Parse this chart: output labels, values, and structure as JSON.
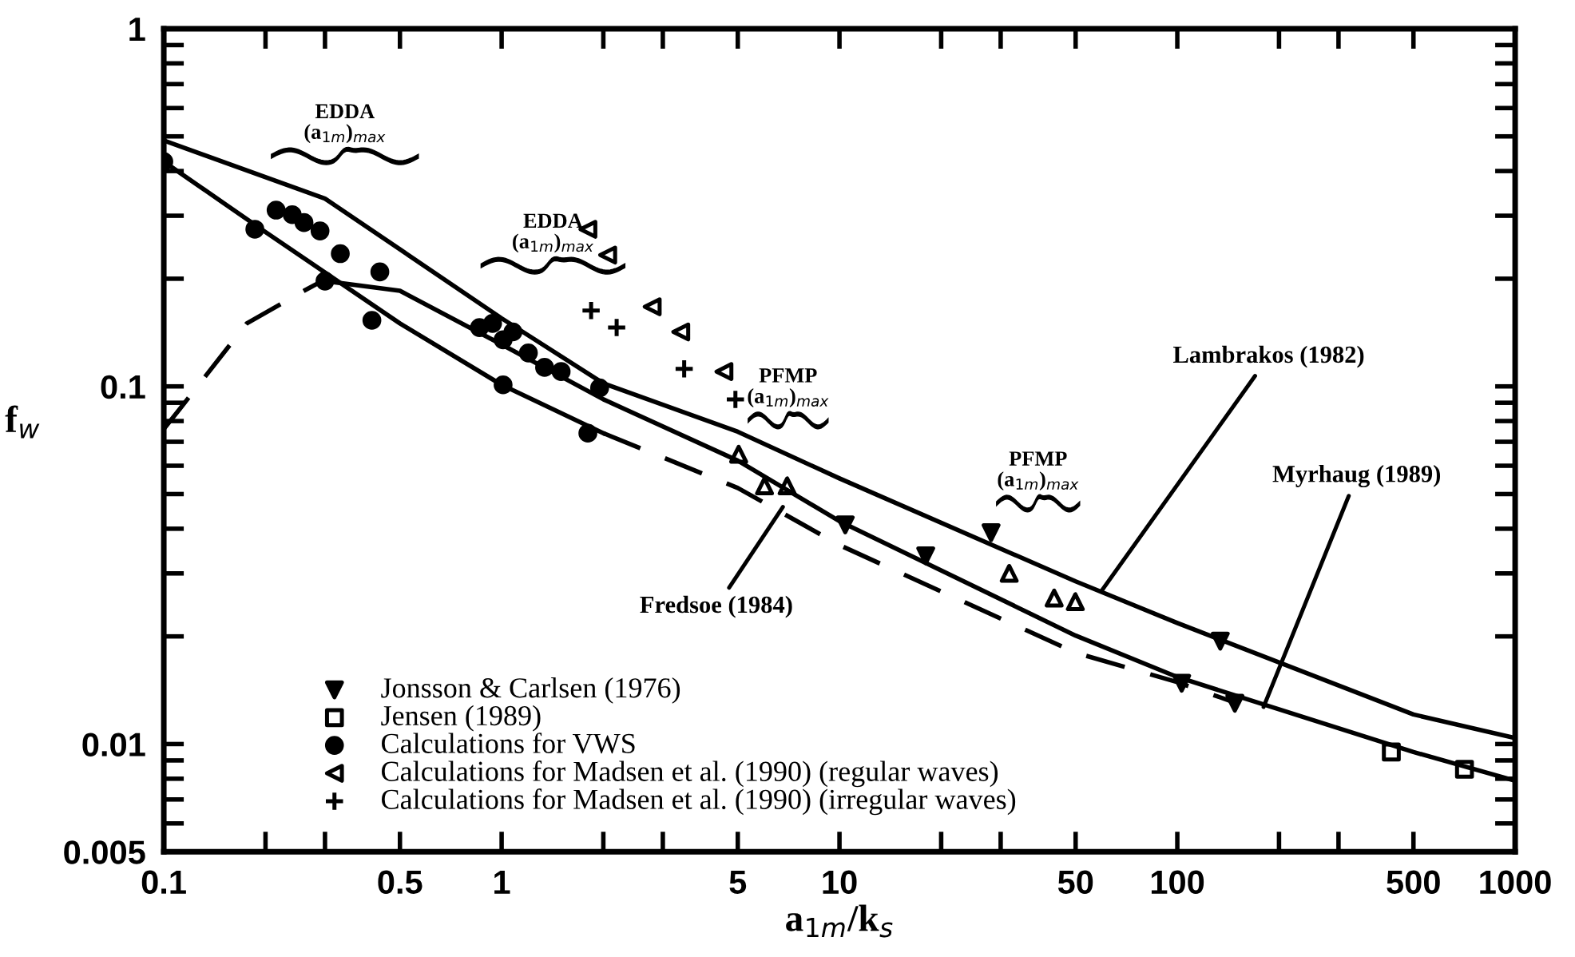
{
  "chart_data": {
    "type": "line",
    "xlabel": "a$_{1m}$/k$_{s}$",
    "ylabel": "f$_{w}$",
    "log": "xy",
    "grid": false,
    "legend": "bottom left",
    "xlim": [
      0.1,
      1000
    ],
    "xticks": [
      0.1,
      {
        "value": 0.2,
        "label": null
      },
      {
        "value": 0.3,
        "label": null
      },
      0.5,
      1,
      {
        "value": 2,
        "label": null
      },
      {
        "value": 3,
        "label": null
      },
      5,
      10,
      {
        "value": 20,
        "label": null
      },
      {
        "value": 30,
        "label": null
      },
      50,
      100,
      {
        "value": 200,
        "label": null
      },
      {
        "value": 300,
        "label": null
      },
      500,
      1000
    ],
    "ylim": [
      0.005,
      1
    ],
    "yticks": [
      0.005,
      {
        "value": 0.006,
        "label": null
      },
      {
        "value": 0.007,
        "label": null
      },
      {
        "value": 0.008,
        "label": null
      },
      {
        "value": 0.009,
        "label": null
      },
      0.01,
      {
        "value": 0.02,
        "label": null
      },
      {
        "value": 0.03,
        "label": null
      },
      {
        "value": 0.04,
        "label": null
      },
      {
        "value": 0.05,
        "label": null
      },
      {
        "value": 0.06,
        "label": null
      },
      {
        "value": 0.07,
        "label": null
      },
      {
        "value": 0.08,
        "label": null
      },
      {
        "value": 0.09,
        "label": null
      },
      0.1,
      {
        "value": 0.2,
        "label": null
      },
      {
        "value": 0.3,
        "label": null
      },
      {
        "value": 0.4,
        "label": null
      },
      {
        "value": 0.5,
        "label": null
      },
      {
        "value": 0.6,
        "label": null
      },
      {
        "value": 0.7,
        "label": null
      },
      {
        "value": 0.8,
        "label": null
      },
      {
        "value": 0.9,
        "label": null
      },
      1
    ],
    "series": [
      {
        "color": "#000000",
        "line_style": "solid",
        "marker": "none",
        "x": [
          0.1,
          0.3,
          1,
          2,
          5,
          10,
          50,
          100,
          500,
          1000
        ],
        "values": [
          0.487,
          0.335,
          0.155,
          0.102,
          0.0747,
          0.0553,
          0.0285,
          0.0218,
          0.0121,
          0.0104
        ]
      },
      {
        "color": "#000000",
        "line_style": "solid",
        "marker": "none",
        "x": [
          0.3,
          0.5,
          1,
          2,
          5,
          10,
          50,
          100,
          500,
          1000
        ],
        "values": [
          0.197,
          0.185,
          0.131,
          0.092,
          0.062,
          0.042,
          0.0201,
          0.0154,
          0.0095,
          0.0079
        ]
      },
      {
        "color": "#000000",
        "line_style": "solid",
        "marker": "none",
        "x": [
          0.1,
          0.2,
          0.5,
          1,
          2
        ],
        "values": [
          0.425,
          0.27,
          0.15,
          0.101,
          0.074
        ]
      },
      {
        "color": "#000000",
        "line_style": "dashed",
        "marker": "none",
        "x": [
          0.1,
          0.111,
          0.176,
          0.26,
          0.3,
          0.5,
          2,
          5,
          10,
          50,
          100,
          150
        ],
        "values": [
          0.076,
          0.086,
          0.15,
          0.185,
          0.199,
          null,
          0.074,
          0.052,
          0.036,
          0.018,
          0.0149,
          0.013
        ]
      },
      {
        "type": "scatter",
        "name": "Jonsson & Carlsen (1976)",
        "color": "#000000",
        "marker": "triangle_down",
        "x": [
          10.4,
          18,
          28.1,
          103,
          134,
          148
        ],
        "values": [
          0.041,
          0.0336,
          0.039,
          0.0148,
          0.0194,
          0.013
        ]
      },
      {
        "type": "scatter",
        "name": "Jensen (1989)",
        "color": "#000000",
        "marker": "square",
        "x": [
          430,
          708
        ],
        "values": [
          0.0095,
          0.0085
        ]
      },
      {
        "type": "scatter",
        "name": "Calculations for VWS",
        "color": "#000000",
        "marker": "circle",
        "x": [
          0.1,
          0.186,
          0.215,
          0.24,
          0.26,
          0.29,
          0.3,
          0.333,
          0.413,
          0.436,
          0.86,
          0.94,
          1.01,
          1.01,
          1.08,
          1.2,
          1.34,
          1.5,
          1.8,
          1.95
        ],
        "values": [
          0.425,
          0.275,
          0.311,
          0.302,
          0.287,
          0.272,
          0.197,
          0.235,
          0.153,
          0.209,
          0.146,
          0.15,
          0.135,
          0.101,
          0.142,
          0.124,
          0.113,
          0.11,
          0.074,
          0.099
        ]
      },
      {
        "type": "scatter",
        "name": "Calculations for Madsen et al. (1990) (regular waves)",
        "color": "#000000",
        "marker": "triangle_left",
        "x": [
          1.8,
          2.06,
          2.79,
          3.39,
          4.55
        ],
        "values": [
          0.275,
          0.233,
          0.167,
          0.142,
          0.11
        ]
      },
      {
        "type": "scatter",
        "name": "Calculations for Madsen et al. (1990) (irregular waves)",
        "color": "#000000",
        "marker": "cross",
        "x": [
          1.84,
          2.19,
          3.47,
          4.92
        ],
        "values": [
          0.163,
          0.146,
          0.112,
          0.092
        ]
      },
      {
        "type": "scatter",
        "color": "#000000",
        "marker": "triangle",
        "x": [
          5.03,
          6.0,
          7.0,
          31.8,
          43.2,
          49.9
        ],
        "values": [
          0.0646,
          0.0527,
          0.0527,
          0.03,
          0.0256,
          0.025
        ]
      }
    ],
    "annotations": [
      {
        "text": "Lambrakos (1982)",
        "x": 60,
        "y": 0.027
      },
      {
        "text": "Myrhaug (1989)",
        "x": 180,
        "y": 0.0127
      },
      {
        "text": "Fredsoe (1984)",
        "x": 6.8,
        "y": 0.046
      },
      "EDDA\n(a$_{1m}$)$_{max}$",
      "EDDA\n(a$_{1m}$)$_{max}$",
      "PFMP\n(a$_{1m}$)$_{max}$",
      "PFMP\n(a$_{1m}$)$_{max}$"
    ]
  }
}
